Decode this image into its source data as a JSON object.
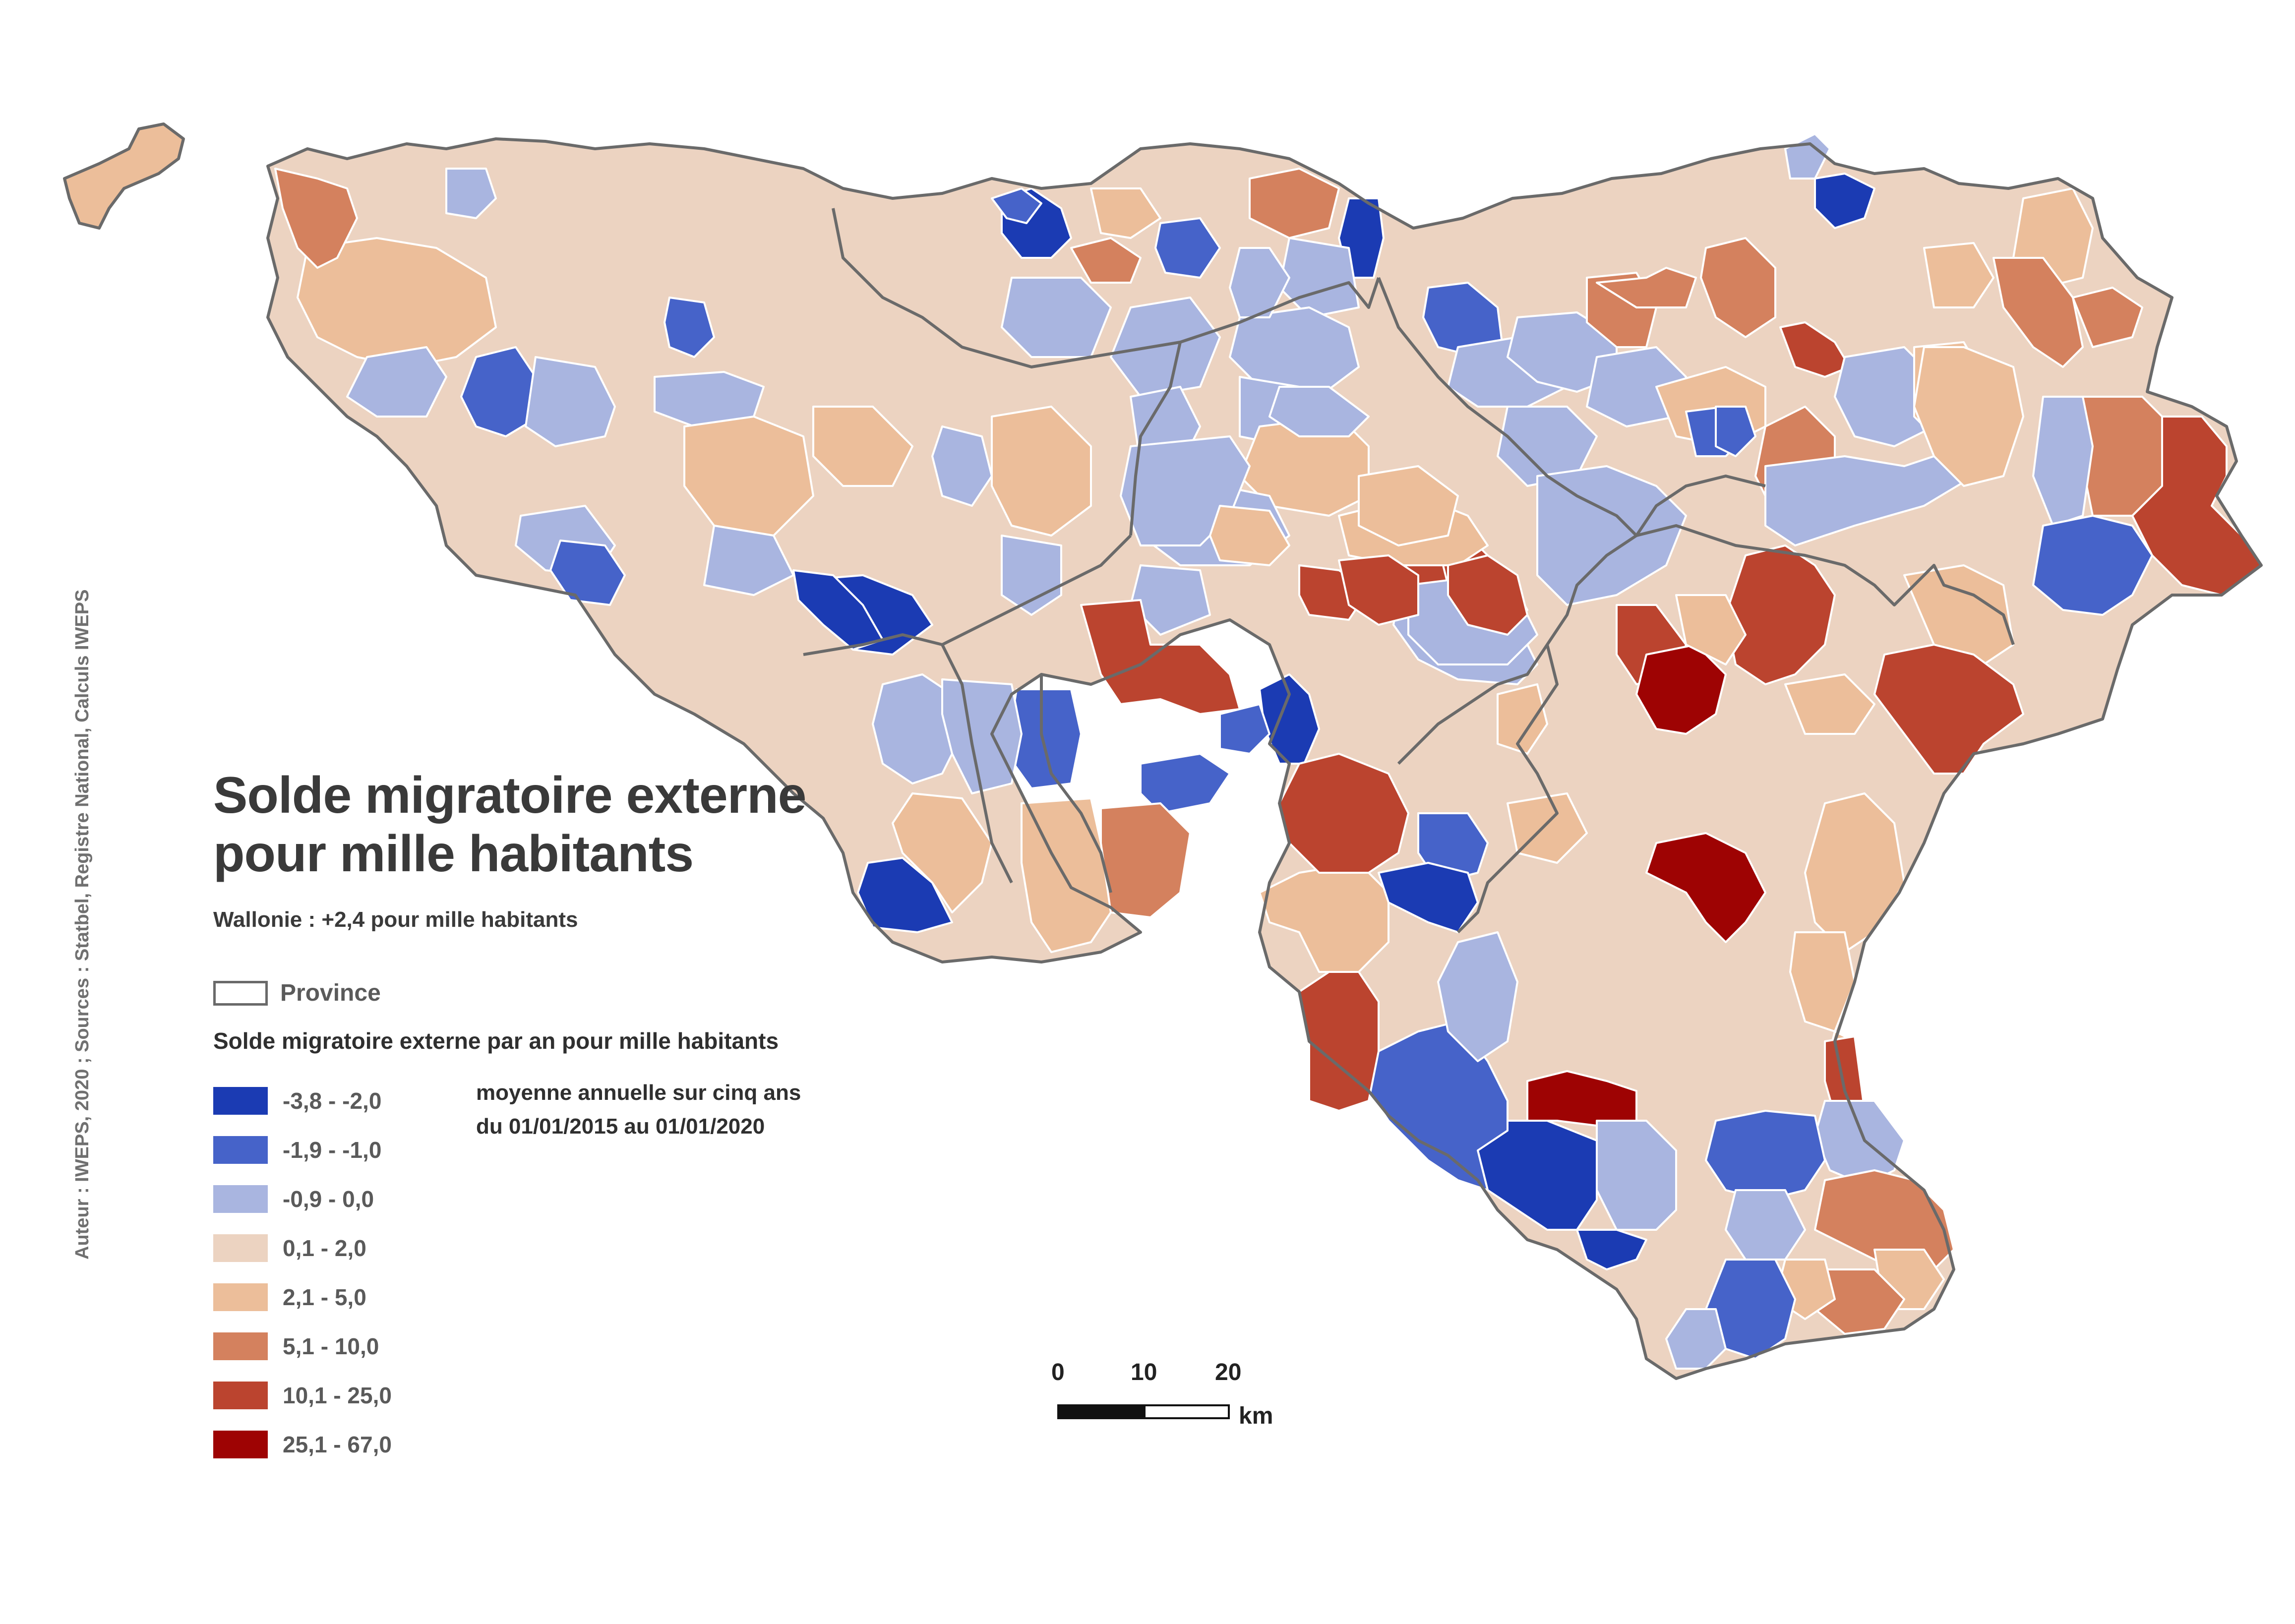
{
  "title": "Solde migratoire externe\npour mille habitants",
  "subtitle": "Wallonie : +2,4 pour mille habitants",
  "province_legend_label": "Province",
  "legend_title": "Solde migratoire externe par an pour mille habitants",
  "period_line1": "moyenne annuelle sur cinq ans",
  "period_line2": "du 01/01/2015 au 01/01/2020",
  "source": "Auteur : IWEPS, 2020 ; Sources : Statbel, Registre National, Calculs IWEPS",
  "scale": {
    "ticks": [
      "0",
      "10",
      "20"
    ],
    "unit": "km"
  },
  "classes": [
    {
      "label": "-3,8 - -2,0",
      "color": "#1b3bb3"
    },
    {
      "label": "-1,9 - -1,0",
      "color": "#4663c9"
    },
    {
      "label": "-0,9 - 0,0",
      "color": "#a9b5e0"
    },
    {
      "label": "0,1 - 2,0",
      "color": "#ecd3c1"
    },
    {
      "label": "2,1 - 5,0",
      "color": "#ecbe9a"
    },
    {
      "label": "5,1 - 10,0",
      "color": "#d4815e"
    },
    {
      "label": "10,1 - 25,0",
      "color": "#bb442f"
    },
    {
      "label": "25,1 - 67,0",
      "color": "#9e0303"
    }
  ]
}
